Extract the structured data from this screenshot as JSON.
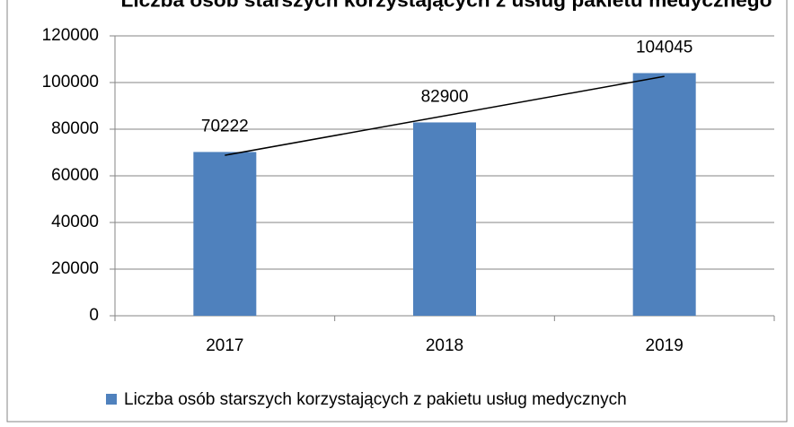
{
  "chart_data": {
    "type": "bar",
    "title": "Liczba osób starszych korzystających z usług pakietu medycznego",
    "categories": [
      "2017",
      "2018",
      "2019"
    ],
    "series": [
      {
        "name": "Liczba osób starszych korzystających z pakietu usług medycznych",
        "color": "#4f81bd",
        "values": [
          70222,
          82900,
          104045
        ]
      }
    ],
    "ylim": [
      0,
      120000
    ],
    "yticks": [
      0,
      20000,
      40000,
      60000,
      80000,
      100000,
      120000
    ],
    "grid": true,
    "trendline": "linear",
    "legend": "bottom"
  }
}
